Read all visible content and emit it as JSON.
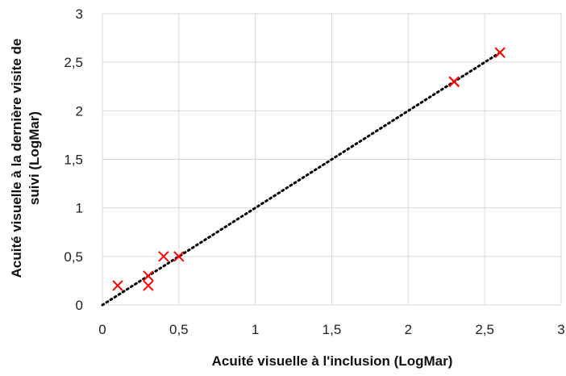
{
  "chart_data": {
    "type": "scatter",
    "title": "",
    "xlabel": "Acuité visuelle à l'inclusion (LogMar)",
    "ylabel_lines": [
      "Acuité visuelle à la dernière visite de",
      "suivi (LogMar)"
    ],
    "xlim": [
      0,
      3
    ],
    "ylim": [
      0,
      3
    ],
    "x_ticks": [
      "0",
      "0,5",
      "1",
      "1,5",
      "2",
      "2,5",
      "3"
    ],
    "y_ticks": [
      "0",
      "0,5",
      "1",
      "1,5",
      "2",
      "2,5",
      "3"
    ],
    "grid": true,
    "legend": "none",
    "marker": "x",
    "marker_color": "#ff0000",
    "points": [
      {
        "x": 0.1,
        "y": 0.2
      },
      {
        "x": 0.3,
        "y": 0.3
      },
      {
        "x": 0.3,
        "y": 0.2
      },
      {
        "x": 0.4,
        "y": 0.5
      },
      {
        "x": 0.5,
        "y": 0.5
      },
      {
        "x": 2.3,
        "y": 2.3
      },
      {
        "x": 2.3,
        "y": 2.3
      },
      {
        "x": 2.6,
        "y": 2.6
      }
    ],
    "trendline": {
      "style": "dotted",
      "color": "#000000",
      "from": {
        "x": 0,
        "y": 0
      },
      "to": {
        "x": 2.6,
        "y": 2.6
      }
    }
  }
}
